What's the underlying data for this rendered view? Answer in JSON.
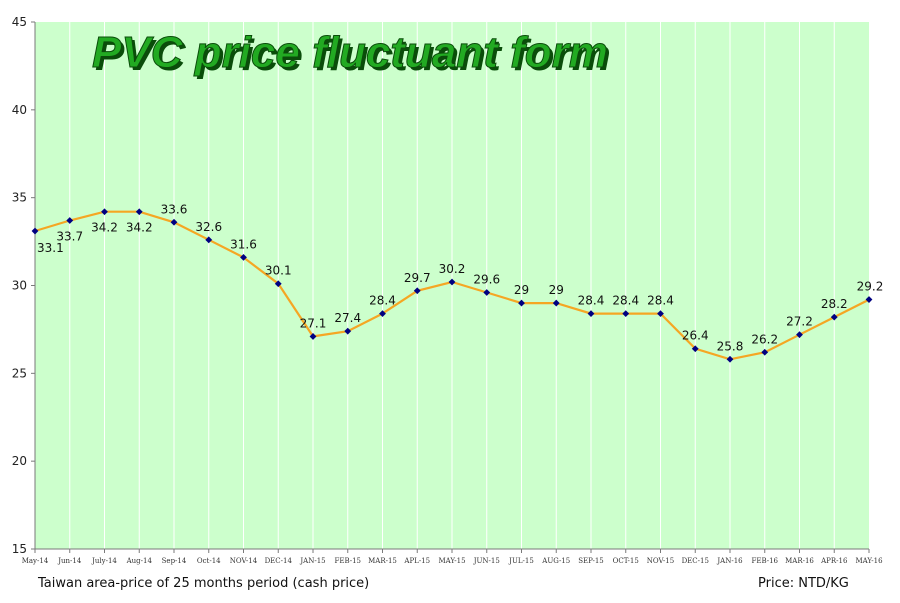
{
  "chart_data": {
    "type": "line",
    "title": "PVC price fluctuant form",
    "categories": [
      "May-14",
      "Jun-14",
      "July-14",
      "Aug-14",
      "Sep-14",
      "Oct-14",
      "NOV-14",
      "DEC-14",
      "JAN-15",
      "FEB-15",
      "MAR-15",
      "APL-15",
      "MAY-15",
      "JUN-15",
      "JUL-15",
      "AUG-15",
      "SEP-15",
      "OCT-15",
      "NOV-15",
      "DEC-15",
      "JAN-16",
      "FEB-16",
      "MAR-16",
      "APR-16",
      "MAY-16"
    ],
    "values": [
      33.1,
      33.7,
      34.2,
      34.2,
      33.6,
      32.6,
      31.6,
      30.1,
      27.1,
      27.4,
      28.4,
      29.7,
      30.2,
      29.6,
      29,
      29,
      28.4,
      28.4,
      28.4,
      26.4,
      25.8,
      26.2,
      27.2,
      28.2,
      29.2
    ],
    "value_labels": [
      "33.1",
      "33.7",
      "34.2",
      "34.2",
      "33.6",
      "32.6",
      "31.6",
      "30.1",
      "27.1",
      "27.4",
      "28.4",
      "29.7",
      "30.2",
      "29.6",
      "29",
      "29",
      "28.4",
      "28.4",
      "28.4",
      "26.4",
      "25.8",
      "26.2",
      "27.2",
      "28.2",
      "29.2"
    ],
    "ylim": [
      15,
      45
    ],
    "yticks": [
      "15",
      "20",
      "25",
      "30",
      "35",
      "40",
      "45"
    ],
    "grid": "vertical",
    "colors": {
      "plot_background": "#ccffcc",
      "line": "#f5a623",
      "marker": "#000080",
      "title_fill": "#22aa22",
      "title_shadow": "#0a4d0a",
      "grid": "#ffffff"
    }
  },
  "captions": {
    "left": "Taiwan area-price of 25 months period (cash price)",
    "right": "Price: NTD/KG"
  }
}
